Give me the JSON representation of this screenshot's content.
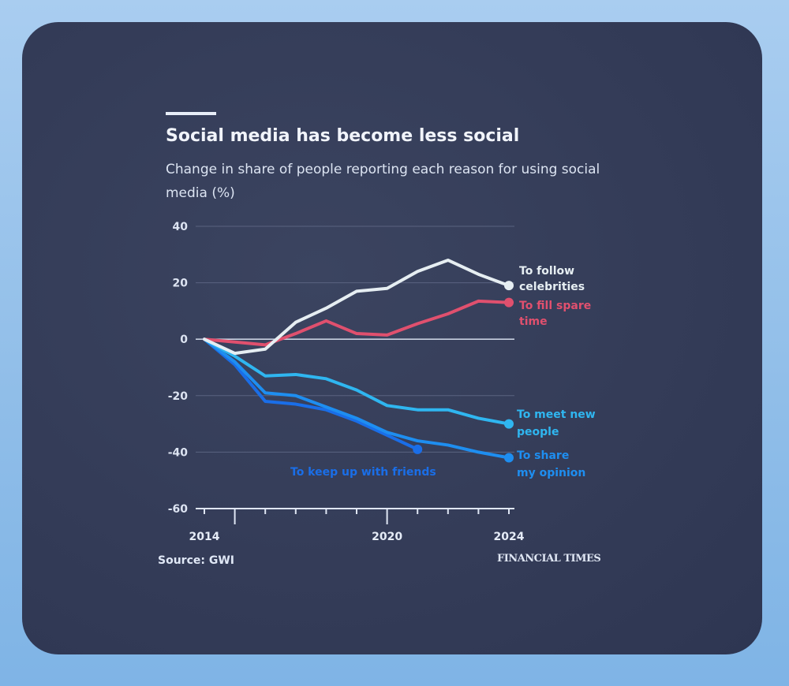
{
  "chart_data": {
    "type": "line",
    "title": "Social media has become less social",
    "subtitle": "Change in share of people reporting each reason for using social media (%)",
    "source": "Source: GWI",
    "publisher": "FINANCIAL TIMES",
    "x": [
      2014,
      2015,
      2016,
      2017,
      2018,
      2019,
      2020,
      2021,
      2022,
      2023,
      2024
    ],
    "x_tick_labels": [
      "2014",
      "2020",
      "2024"
    ],
    "y_tick_labels": [
      "40",
      "20",
      "0",
      "-20",
      "-40",
      "-60"
    ],
    "ylim": [
      -60,
      40
    ],
    "grid": true,
    "series": [
      {
        "name": "To follow celebrities",
        "color": "#e6eef2",
        "values": [
          0,
          -5,
          -3.5,
          6,
          11,
          17,
          18,
          24,
          28,
          23,
          19
        ]
      },
      {
        "name": "To fill spare time",
        "color": "#e0506e",
        "values": [
          0,
          -1,
          -2,
          2,
          6.5,
          2,
          1.5,
          5.5,
          9,
          13.5,
          13
        ]
      },
      {
        "name": "To meet new people",
        "color": "#2fb6f0",
        "values": [
          0,
          -6,
          -13,
          -12.5,
          -14,
          -18,
          -23.5,
          -25,
          -25,
          -28,
          -30
        ]
      },
      {
        "name": "To share my opinion",
        "color": "#1e8ef0",
        "values": [
          0,
          -8,
          -19,
          -20,
          -24,
          -28,
          -33,
          -36,
          -37.5,
          -40,
          -42
        ]
      },
      {
        "name": "To keep up with friends",
        "color": "#1a6ee8",
        "values": [
          0,
          -9,
          -22,
          -23,
          -25,
          -29,
          -34,
          -39,
          null,
          null,
          null
        ]
      }
    ]
  }
}
